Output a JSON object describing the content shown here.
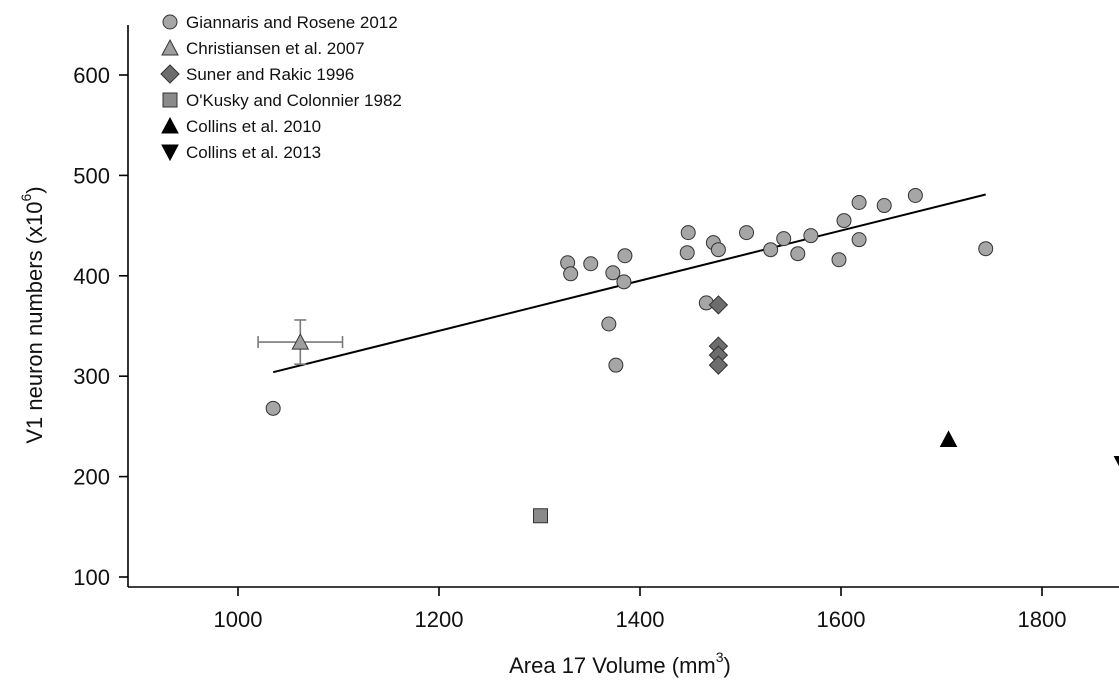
{
  "chart_data": {
    "type": "scatter",
    "xlabel": "Area 17 Volume (mm",
    "xlabel_sup": "3",
    "xlabel_close": ")",
    "ylabel": "V1 neuron numbers (x10",
    "ylabel_sup": "6",
    "ylabel_close": ")",
    "xlim": [
      900,
      1880
    ],
    "ylim": [
      90,
      650
    ],
    "xticks": [
      1000,
      1200,
      1400,
      1600,
      1800
    ],
    "yticks": [
      100,
      200,
      300,
      400,
      500,
      600
    ],
    "xtick_labels": [
      "1000",
      "1200",
      "1400",
      "1600",
      "1800"
    ],
    "ytick_labels": [
      "100",
      "200",
      "300",
      "400",
      "500",
      "600"
    ],
    "legend_position": "top-left",
    "series": [
      {
        "name": "Giannaris and Rosene 2012",
        "marker": "circle",
        "color": "#a6a6a6",
        "points": [
          [
            1035,
            268
          ],
          [
            1328,
            413
          ],
          [
            1331,
            402
          ],
          [
            1351,
            412
          ],
          [
            1369,
            352
          ],
          [
            1373,
            403
          ],
          [
            1376,
            311
          ],
          [
            1384,
            394
          ],
          [
            1385,
            420
          ],
          [
            1447,
            423
          ],
          [
            1448,
            443
          ],
          [
            1466,
            373
          ],
          [
            1473,
            433
          ],
          [
            1478,
            426
          ],
          [
            1506,
            443
          ],
          [
            1530,
            426
          ],
          [
            1543,
            437
          ],
          [
            1557,
            422
          ],
          [
            1570,
            440
          ],
          [
            1598,
            416
          ],
          [
            1603,
            455
          ],
          [
            1618,
            436
          ],
          [
            1618,
            473
          ],
          [
            1643,
            470
          ],
          [
            1674,
            480
          ],
          [
            1744,
            427
          ]
        ]
      },
      {
        "name": "Christiansen et al. 2007",
        "marker": "triangle-up",
        "color": "#9e9e9e",
        "points": [
          [
            1062,
            334
          ]
        ],
        "error": {
          "x_err": 42,
          "y_err": 22
        }
      },
      {
        "name": "Suner and Rakic 1996",
        "marker": "diamond",
        "color": "#6d6d6d",
        "points": [
          [
            1478,
            371
          ],
          [
            1478,
            330
          ],
          [
            1478,
            321
          ],
          [
            1478,
            311
          ]
        ]
      },
      {
        "name": "O'Kusky and Colonnier 1982",
        "marker": "square",
        "color": "#8a8a8a",
        "points": [
          [
            1301,
            161
          ]
        ]
      },
      {
        "name": "Collins et al. 2010",
        "marker": "triangle-up",
        "color": "#000000",
        "points": [
          [
            1707,
            237
          ]
        ]
      },
      {
        "name": "Collins et al. 2013",
        "marker": "triangle-down",
        "color": "#000000",
        "points": [
          [
            1880,
            213
          ]
        ]
      }
    ],
    "fit_line": {
      "x": [
        1035,
        1744
      ],
      "y": [
        304,
        481
      ],
      "color": "#000000"
    }
  }
}
